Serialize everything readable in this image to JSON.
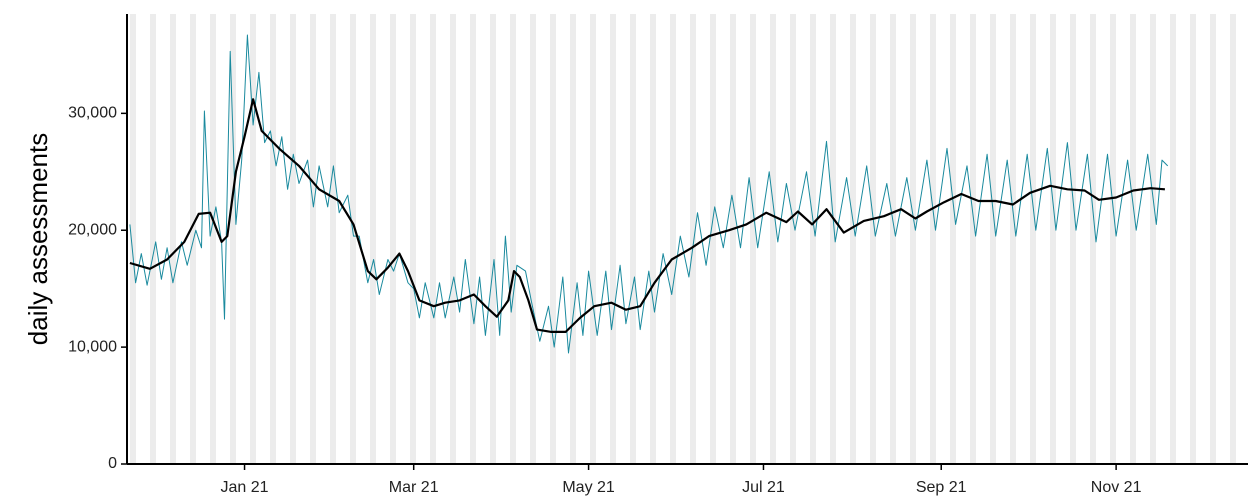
{
  "chart_data": {
    "type": "line",
    "ylabel": "daily assessments",
    "xlim": [
      -41,
      350
    ],
    "ylim": [
      0,
      38500
    ],
    "xticks": [
      {
        "value": 0,
        "label": "Jan 21"
      },
      {
        "value": 59,
        "label": "Mar 21"
      },
      {
        "value": 120,
        "label": "May 21"
      },
      {
        "value": 181,
        "label": "Jul 21"
      },
      {
        "value": 243,
        "label": "Sep 21"
      },
      {
        "value": 304,
        "label": "Nov 21"
      }
    ],
    "yticks": [
      0,
      {
        "value": 10000,
        "label": "10,000"
      },
      {
        "value": 20000,
        "label": "20,000"
      },
      {
        "value": 30000,
        "label": "30,000"
      }
    ],
    "series": [
      {
        "color": "#1a8a9e",
        "width": 1,
        "x": [
          -40,
          -38,
          -36,
          -34,
          -31,
          -29,
          -27,
          -25,
          -22,
          -20,
          -17,
          -15,
          -14,
          -12,
          -10,
          -8,
          -7,
          -5,
          -3,
          -1,
          1,
          3,
          5,
          7,
          9,
          11,
          13,
          15,
          17,
          19,
          22,
          24,
          26,
          29,
          31,
          33,
          36,
          38,
          40,
          43,
          45,
          47,
          50,
          52,
          54,
          57,
          59,
          61,
          63,
          66,
          68,
          70,
          73,
          75,
          77,
          80,
          82,
          84,
          87,
          89,
          91,
          93,
          95,
          98,
          100,
          103,
          106,
          108,
          111,
          113,
          116,
          118,
          120,
          123,
          126,
          128,
          131,
          133,
          136,
          138,
          141,
          143,
          146,
          149,
          152,
          155,
          158,
          161,
          164,
          167,
          170,
          173,
          176,
          179,
          183,
          186,
          189,
          192,
          196,
          199,
          203,
          206,
          210,
          213,
          217,
          220,
          224,
          227,
          231,
          234,
          238,
          241,
          245,
          248,
          252,
          255,
          259,
          262,
          266,
          269,
          273,
          276,
          280,
          283,
          287,
          290,
          294,
          297,
          301,
          304,
          308,
          311,
          315,
          318,
          320,
          322
        ],
        "values": [
          20500,
          15500,
          18000,
          15300,
          19000,
          15800,
          18500,
          15500,
          19000,
          17000,
          20000,
          18500,
          30200,
          19500,
          22000,
          19000,
          12400,
          35300,
          20500,
          26000,
          36700,
          29000,
          33500,
          27500,
          28500,
          25500,
          28000,
          23500,
          26500,
          24000,
          26000,
          22000,
          25500,
          22000,
          25500,
          21500,
          23000,
          19500,
          19500,
          15500,
          17500,
          14500,
          17500,
          16500,
          18000,
          15500,
          15000,
          12500,
          15500,
          12500,
          15500,
          12500,
          16000,
          13000,
          17500,
          12000,
          16000,
          11000,
          17500,
          11000,
          19500,
          13000,
          17000,
          16500,
          14000,
          10500,
          13500,
          10000,
          16000,
          9500,
          15500,
          11000,
          16500,
          11000,
          16500,
          11500,
          17000,
          12000,
          16000,
          11500,
          16500,
          13000,
          18000,
          14500,
          19500,
          16000,
          21500,
          17000,
          22000,
          18500,
          23000,
          18500,
          24500,
          18500,
          25000,
          19000,
          24000,
          20000,
          25000,
          19500,
          27600,
          19000,
          24500,
          19500,
          25500,
          19500,
          24000,
          19500,
          24500,
          20000,
          26000,
          20000,
          27000,
          20500,
          25500,
          19500,
          26500,
          19500,
          26000,
          19500,
          26500,
          20000,
          27000,
          20000,
          27500,
          20000,
          26500,
          19000,
          26500,
          19500,
          26000,
          20000,
          26500,
          20500,
          26000,
          25500
        ]
      },
      {
        "color": "#000000",
        "width": 2.2,
        "x": [
          -40,
          -33,
          -27,
          -21,
          -16,
          -12,
          -8,
          -6,
          -3,
          0,
          3,
          6,
          12,
          19,
          26,
          33,
          38,
          43,
          46,
          50,
          54,
          57,
          61,
          66,
          70,
          75,
          80,
          84,
          88,
          92,
          94,
          96,
          99,
          102,
          107,
          112,
          117,
          122,
          128,
          133,
          138,
          143,
          149,
          156,
          162,
          169,
          175,
          182,
          189,
          193,
          198,
          203,
          209,
          216,
          223,
          229,
          234,
          238,
          244,
          250,
          256,
          262,
          268,
          274,
          281,
          287,
          293,
          298,
          304,
          310,
          316,
          321
        ],
        "values": [
          17200,
          16700,
          17500,
          19000,
          21400,
          21500,
          19000,
          19500,
          25000,
          28000,
          31200,
          28500,
          27000,
          25500,
          23500,
          22500,
          20500,
          16500,
          15800,
          16800,
          18000,
          16500,
          14000,
          13500,
          13800,
          14000,
          14500,
          13500,
          12600,
          14000,
          16500,
          16000,
          14000,
          11500,
          11300,
          11300,
          12500,
          13500,
          13800,
          13200,
          13500,
          15500,
          17500,
          18500,
          19500,
          20000,
          20500,
          21500,
          20700,
          21600,
          20500,
          21800,
          19800,
          20800,
          21200,
          21800,
          21000,
          21600,
          22400,
          23100,
          22500,
          22500,
          22200,
          23200,
          23800,
          23500,
          23400,
          22600,
          22800,
          23400,
          23600,
          23500
        ]
      }
    ]
  }
}
